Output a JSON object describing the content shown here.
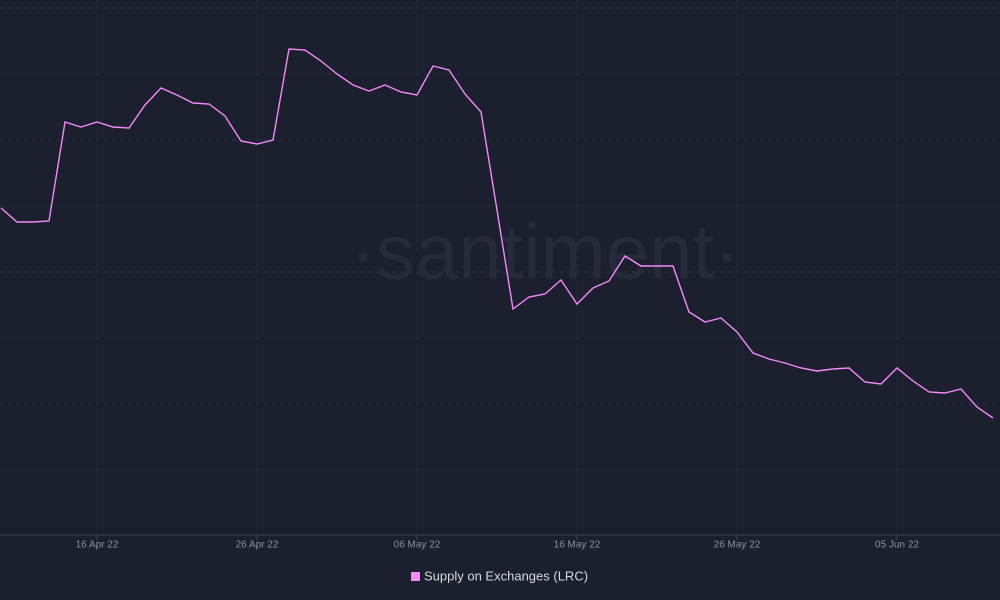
{
  "chart_data": {
    "type": "line",
    "watermark": "·santiment·",
    "x": [
      "2022-04-10",
      "2022-04-11",
      "2022-04-12",
      "2022-04-13",
      "2022-04-14",
      "2022-04-15",
      "2022-04-16",
      "2022-04-17",
      "2022-04-18",
      "2022-04-19",
      "2022-04-20",
      "2022-04-21",
      "2022-04-22",
      "2022-04-23",
      "2022-04-24",
      "2022-04-25",
      "2022-04-26",
      "2022-04-27",
      "2022-04-28",
      "2022-04-29",
      "2022-04-30",
      "2022-05-01",
      "2022-05-02",
      "2022-05-03",
      "2022-05-04",
      "2022-05-05",
      "2022-05-06",
      "2022-05-07",
      "2022-05-08",
      "2022-05-09",
      "2022-05-10",
      "2022-05-11",
      "2022-05-12",
      "2022-05-13",
      "2022-05-14",
      "2022-05-15",
      "2022-05-16",
      "2022-05-17",
      "2022-05-18",
      "2022-05-19",
      "2022-05-20",
      "2022-05-21",
      "2022-05-22",
      "2022-05-23",
      "2022-05-24",
      "2022-05-25",
      "2022-05-26",
      "2022-05-27",
      "2022-05-28",
      "2022-05-29",
      "2022-05-30",
      "2022-05-31",
      "2022-06-01",
      "2022-06-02",
      "2022-06-03",
      "2022-06-04",
      "2022-06-05",
      "2022-06-06",
      "2022-06-07",
      "2022-06-08",
      "2022-06-09",
      "2022-06-10",
      "2022-06-11"
    ],
    "series": [
      {
        "name": "Supply on Exchanges (LRC)",
        "color": "#f28bf7",
        "values": [
          327,
          313,
          313,
          314,
          413,
          408,
          413,
          408,
          407,
          430,
          447,
          440,
          432,
          431,
          419,
          394,
          391,
          395,
          486,
          485,
          474,
          461,
          450,
          444,
          450,
          443,
          440,
          469,
          465,
          441,
          423,
          325,
          226,
          238,
          241,
          255,
          231,
          247,
          254,
          279,
          269,
          269,
          269,
          223,
          213,
          217,
          203,
          182,
          176,
          172,
          167,
          164,
          166,
          167,
          153,
          151,
          167,
          154,
          143,
          142,
          146,
          128,
          117
        ]
      }
    ],
    "xlim": [
      "2022-04-10",
      "2022-06-12"
    ],
    "xticks": [
      {
        "value": "2022-04-16",
        "label": "16 Apr 22"
      },
      {
        "value": "2022-04-26",
        "label": "26 Apr 22"
      },
      {
        "value": "2022-05-06",
        "label": "06 May 22"
      },
      {
        "value": "2022-05-16",
        "label": "16 May 22"
      },
      {
        "value": "2022-05-26",
        "label": "26 May 22"
      },
      {
        "value": "2022-06-05",
        "label": "05 Jun 22"
      }
    ],
    "ylim": [
      0,
      535
    ],
    "grid": true,
    "legend": "bottom"
  }
}
